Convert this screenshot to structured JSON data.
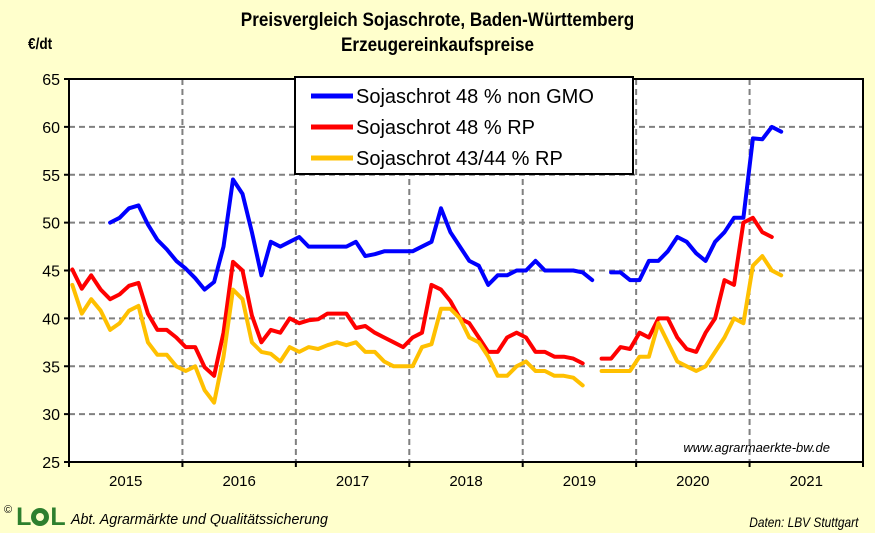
{
  "header": {
    "title_line1": "Preisvergleich Sojaschrote, Baden-Württemberg",
    "title_line2": "Erzeugereinkaufspreise",
    "unit_label": "€/dt"
  },
  "footer": {
    "copyright": "©",
    "logo_text_l": "L",
    "logo_text_e": "E",
    "logo_text_l2": "L",
    "organization": "Abt. Agrarmärkte und Qualitätssicherung",
    "source": "Daten: LBV Stuttgart"
  },
  "watermark": "www.agrarmaerkte-bw.de",
  "chart_data": {
    "type": "line",
    "title": "Preisvergleich Sojaschrote, Baden-Württemberg – Erzeugereinkaufspreise",
    "xlabel": "",
    "ylabel": "€/dt",
    "ylim": [
      25,
      65
    ],
    "yticks": [
      25,
      30,
      35,
      40,
      45,
      50,
      55,
      60,
      65
    ],
    "x_tick_labels": [
      "2015",
      "2016",
      "2017",
      "2018",
      "2019",
      "2020",
      "2021"
    ],
    "x_start": "2015-01",
    "x_end_axis": "2021-12",
    "x_frequency": "monthly",
    "grid": true,
    "legend_position": "top-center",
    "series": [
      {
        "name": "Sojaschrot 48 % non GMO",
        "color": "#0000ff",
        "values": [
          null,
          null,
          null,
          null,
          50.0,
          50.5,
          51.5,
          51.8,
          49.8,
          48.2,
          47.2,
          46.0,
          45.2,
          44.2,
          43.0,
          43.8,
          47.5,
          54.5,
          53.0,
          49.0,
          44.5,
          48.0,
          47.5,
          48.0,
          48.5,
          47.5,
          47.5,
          47.5,
          47.5,
          47.5,
          48.0,
          46.5,
          46.7,
          47.0,
          47.0,
          47.0,
          47.0,
          47.5,
          48.0,
          51.5,
          49.0,
          47.5,
          46.0,
          45.5,
          43.5,
          44.5,
          44.5,
          45.0,
          45.0,
          46.0,
          45.0,
          45.0,
          45.0,
          45.0,
          44.8,
          44.0,
          null,
          44.8,
          44.8,
          44.0,
          44.0,
          46.0,
          46.0,
          47.0,
          48.5,
          48.0,
          46.8,
          46.0,
          48.0,
          49.0,
          50.5,
          50.5,
          58.8,
          58.7,
          60.0,
          59.5
        ]
      },
      {
        "name": "Sojaschrot 48 % RP",
        "color": "#ff0000",
        "values": [
          45.1,
          43.1,
          44.5,
          43.0,
          42.0,
          42.5,
          43.4,
          43.7,
          40.5,
          38.8,
          38.8,
          38.0,
          37.0,
          37.0,
          34.9,
          34.0,
          38.5,
          45.9,
          45.0,
          40.3,
          37.5,
          38.8,
          38.5,
          40.0,
          39.5,
          39.8,
          39.9,
          40.5,
          40.5,
          40.5,
          39.0,
          39.2,
          38.5,
          38.0,
          37.5,
          37.0,
          38.0,
          38.5,
          43.5,
          43.0,
          41.8,
          40.0,
          39.5,
          38.0,
          36.5,
          36.5,
          38.0,
          38.5,
          38.0,
          36.5,
          36.5,
          36.0,
          36.0,
          35.8,
          35.3,
          null,
          35.8,
          35.8,
          37.0,
          36.8,
          38.5,
          38.0,
          40.0,
          40.0,
          38.0,
          36.8,
          36.5,
          38.5,
          40.0,
          44.0,
          43.5,
          50.0,
          50.5,
          49.0,
          48.5
        ]
      },
      {
        "name": "Sojaschrot 43/44 % RP",
        "color": "#ffc000",
        "values": [
          43.5,
          40.5,
          42.0,
          40.8,
          38.8,
          39.5,
          40.8,
          41.3,
          37.5,
          36.2,
          36.2,
          35.0,
          34.5,
          35.0,
          32.5,
          31.2,
          36.0,
          43.0,
          42.0,
          37.5,
          36.5,
          36.3,
          35.5,
          37.0,
          36.5,
          37.0,
          36.8,
          37.2,
          37.5,
          37.2,
          37.5,
          36.5,
          36.5,
          35.5,
          35.0,
          35.0,
          35.0,
          37.0,
          37.3,
          41.0,
          41.0,
          40.0,
          38.0,
          37.5,
          36.0,
          34.0,
          34.0,
          35.0,
          35.5,
          34.5,
          34.5,
          34.0,
          34.0,
          33.8,
          33.0,
          null,
          34.5,
          34.5,
          34.5,
          34.5,
          36.0,
          36.0,
          39.5,
          37.5,
          35.5,
          35.0,
          34.5,
          35.0,
          36.5,
          38.0,
          40.0,
          39.5,
          45.5,
          46.5,
          45.0,
          44.5
        ]
      }
    ]
  }
}
